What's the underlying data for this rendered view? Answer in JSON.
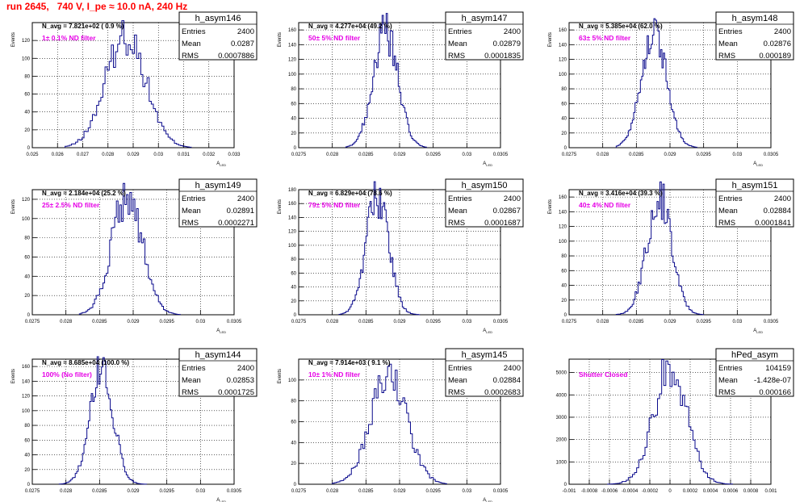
{
  "header": {
    "run_title": "run 2645,   740 V, I_pe ≈ 10.0 nA, 240 Hz"
  },
  "colors": {
    "hist_line": "#0a0a8c",
    "note_text": "#e600e6",
    "title_text": "#ff0000",
    "grid": "#000000",
    "axis": "#000000"
  },
  "chart_data": [
    {
      "type": "bar",
      "name": "h_asym146",
      "ylabel": "Events",
      "xlabel": "A_{LED}",
      "xlim": [
        0.025,
        0.033
      ],
      "ylim": [
        0,
        140
      ],
      "xticks": [
        "0.025",
        "0.026",
        "0.027",
        "0.028",
        "0.029",
        "0.03",
        "0.031",
        "0.032",
        "0.033"
      ],
      "yticks": [
        0,
        20,
        40,
        60,
        80,
        100,
        120
      ],
      "navg": "N_avg = 7.821e+02 ( 0.9 %)",
      "note": "1± 0.1% ND filter",
      "stats": {
        "entries_label": "Entries",
        "entries": "2400",
        "mean_label": "Mean",
        "mean": "0.0287",
        "rms_label": "RMS",
        "rms": "0.0007886"
      },
      "mean": 0.0287,
      "sigma": 0.00079,
      "peak": 126,
      "x_min": 0.0263,
      "x_max": 0.0313
    },
    {
      "type": "bar",
      "name": "h_asym147",
      "ylabel": "Events",
      "xlabel": "A_{LED}",
      "xlim": [
        0.0275,
        0.0305
      ],
      "ylim": [
        0,
        170
      ],
      "xticks": [
        "0.0275",
        "0.028",
        "0.0285",
        "0.029",
        "0.0295",
        "0.03",
        "0.0305"
      ],
      "yticks": [
        0,
        20,
        40,
        60,
        80,
        100,
        120,
        140,
        160
      ],
      "navg": "N_avg = 4.277e+04 (49.2 %)",
      "note": "50± 5% ND filter",
      "stats": {
        "entries_label": "Entries",
        "entries": "2400",
        "mean_label": "Mean",
        "mean": "0.02879",
        "rms_label": "RMS",
        "rms": "0.0001835"
      },
      "mean": 0.02879,
      "sigma": 0.000184,
      "peak": 158,
      "x_min": 0.0282,
      "x_max": 0.0294
    },
    {
      "type": "bar",
      "name": "h_asym148",
      "ylabel": "Events",
      "xlabel": "A_{LED}",
      "xlim": [
        0.0275,
        0.0305
      ],
      "ylim": [
        0,
        170
      ],
      "xticks": [
        "0.0275",
        "0.028",
        "0.0285",
        "0.029",
        "0.0295",
        "0.03",
        "0.0305"
      ],
      "yticks": [
        0,
        20,
        40,
        60,
        80,
        100,
        120,
        140,
        160
      ],
      "navg": "N_avg = 5.385e+04 (62.0 %)",
      "note": "63± 5% ND filter",
      "stats": {
        "entries_label": "Entries",
        "entries": "2400",
        "mean_label": "Mean",
        "mean": "0.02876",
        "rms_label": "RMS",
        "rms": "0.000189"
      },
      "mean": 0.02876,
      "sigma": 0.000189,
      "peak": 158,
      "x_min": 0.0282,
      "x_max": 0.0294
    },
    {
      "type": "bar",
      "name": "h_asym149",
      "ylabel": "Events",
      "xlabel": "A_{LED}",
      "xlim": [
        0.0275,
        0.0305
      ],
      "ylim": [
        0,
        130
      ],
      "xticks": [
        "0.0275",
        "0.028",
        "0.0285",
        "0.029",
        "0.0295",
        "0.03",
        "0.0305"
      ],
      "yticks": [
        0,
        20,
        40,
        60,
        80,
        100,
        120
      ],
      "navg": "N_avg = 2.184e+04 (25.2 %)",
      "note": "25± 2.5% ND filter",
      "stats": {
        "entries_label": "Entries",
        "entries": "2400",
        "mean_label": "Mean",
        "mean": "0.02891",
        "rms_label": "RMS",
        "rms": "0.0002271"
      },
      "mean": 0.02891,
      "sigma": 0.000227,
      "peak": 124,
      "x_min": 0.0282,
      "x_max": 0.0297
    },
    {
      "type": "bar",
      "name": "h_asym150",
      "ylabel": "Events",
      "xlabel": "A_{LED}",
      "xlim": [
        0.0275,
        0.0305
      ],
      "ylim": [
        0,
        180
      ],
      "xticks": [
        "0.0275",
        "0.028",
        "0.0285",
        "0.029",
        "0.0295",
        "0.03",
        "0.0305"
      ],
      "yticks": [
        0,
        20,
        40,
        60,
        80,
        100,
        120,
        140,
        160,
        180
      ],
      "navg": "N_avg = 6.829e+04 (78.6 %)",
      "note": "79± 5% ND filter",
      "stats": {
        "entries_label": "Entries",
        "entries": "2400",
        "mean_label": "Mean",
        "mean": "0.02867",
        "rms_label": "RMS",
        "rms": "0.0001687"
      },
      "mean": 0.02867,
      "sigma": 0.000169,
      "peak": 170,
      "x_min": 0.0281,
      "x_max": 0.0293
    },
    {
      "type": "bar",
      "name": "h_asym151",
      "ylabel": "Events",
      "xlabel": "A_{LED}",
      "xlim": [
        0.0275,
        0.0305
      ],
      "ylim": [
        0,
        170
      ],
      "xticks": [
        "0.0275",
        "0.028",
        "0.0285",
        "0.029",
        "0.0295",
        "0.03",
        "0.0305"
      ],
      "yticks": [
        0,
        20,
        40,
        60,
        80,
        100,
        120,
        140,
        160
      ],
      "navg": "N_avg = 3.416e+04 (39.3 %)",
      "note": "40± 4% ND filter",
      "stats": {
        "entries_label": "Entries",
        "entries": "2400",
        "mean_label": "Mean",
        "mean": "0.02884",
        "rms_label": "RMS",
        "rms": "0.0001841"
      },
      "mean": 0.02884,
      "sigma": 0.000184,
      "peak": 162,
      "x_min": 0.0282,
      "x_max": 0.0295
    },
    {
      "type": "bar",
      "name": "h_asym144",
      "ylabel": "Events",
      "xlabel": "A_{LED}",
      "xlim": [
        0.0275,
        0.0305
      ],
      "ylim": [
        0,
        170
      ],
      "xticks": [
        "0.0275",
        "0.028",
        "0.0285",
        "0.029",
        "0.0295",
        "0.03",
        "0.0305"
      ],
      "yticks": [
        0,
        20,
        40,
        60,
        80,
        100,
        120,
        140,
        160
      ],
      "navg": "N_avg = 8.685e+04 (100.0 %)",
      "note": "100% (No filter)",
      "stats": {
        "entries_label": "Entries",
        "entries": "2400",
        "mean_label": "Mean",
        "mean": "0.02853",
        "rms_label": "RMS",
        "rms": "0.0001725"
      },
      "mean": 0.02853,
      "sigma": 0.000173,
      "peak": 160,
      "x_min": 0.0279,
      "x_max": 0.0292
    },
    {
      "type": "bar",
      "name": "h_asym145",
      "ylabel": "Events",
      "xlabel": "A_{LED}",
      "xlim": [
        0.0275,
        0.0305
      ],
      "ylim": [
        0,
        120
      ],
      "xticks": [
        "0.0275",
        "0.028",
        "0.0285",
        "0.029",
        "0.0295",
        "0.03",
        "0.0305"
      ],
      "yticks": [
        0,
        20,
        40,
        60,
        80,
        100
      ],
      "navg": "N_avg = 7.914e+03 ( 9.1 %)",
      "note": "10± 1% ND filter",
      "stats": {
        "entries_label": "Entries",
        "entries": "2400",
        "mean_label": "Mean",
        "mean": "0.02884",
        "rms_label": "RMS",
        "rms": "0.0002683"
      },
      "mean": 0.02884,
      "sigma": 0.000268,
      "peak": 104,
      "x_min": 0.028,
      "x_max": 0.0297
    },
    {
      "type": "bar",
      "name": "hPed_asym",
      "ylabel": "",
      "xlabel": "",
      "xlim": [
        -0.001,
        0.001
      ],
      "ylim": [
        0,
        5600
      ],
      "xticks": [
        "-0.001",
        "-0.0008",
        "-0.0006",
        "-0.0004",
        "-0.0002",
        "0",
        "0.0002",
        "0.0004",
        "0.0006",
        "0.0008",
        "0.001"
      ],
      "yticks": [
        0,
        1000,
        2000,
        3000,
        4000,
        5000
      ],
      "navg": "",
      "note": "Shutter Closed",
      "stats": {
        "entries_label": "Entries",
        "entries": "104159",
        "mean_label": "Mean",
        "mean": "-1.428e-07",
        "rms_label": "RMS",
        "rms": "0.000166"
      },
      "mean": 0.0,
      "sigma": 0.000166,
      "peak": 5200,
      "x_min": -0.00062,
      "x_max": 0.00062
    }
  ]
}
